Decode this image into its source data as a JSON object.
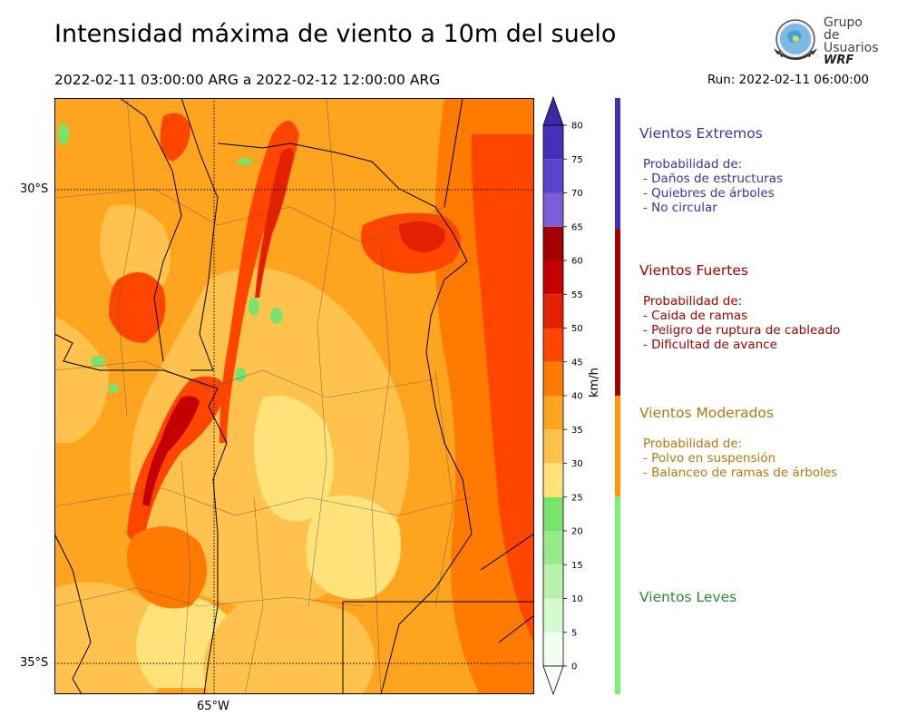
{
  "title": "Intensidad máxima de viento a 10m del suelo",
  "period": "2022-02-11 03:00:00 ARG  a  2022-02-12 12:00:00 ARG",
  "run": "Run: 2022-02-11 06:00:00",
  "logo": {
    "line1": "Grupo de",
    "line2": "Usuarios",
    "line3": "WRF"
  },
  "map": {
    "lat_labels": [
      "30°S",
      "35°S"
    ],
    "lon_labels": [
      "65°W"
    ]
  },
  "colorbar": {
    "unit": "km/h",
    "ticks": [
      "0",
      "5",
      "10",
      "15",
      "20",
      "25",
      "30",
      "35",
      "40",
      "45",
      "50",
      "55",
      "60",
      "65",
      "70",
      "75",
      "80"
    ],
    "colors": [
      "#f0fff0",
      "#d6f9d2",
      "#b7f2ac",
      "#97ea8a",
      "#78e36d",
      "#ffe27a",
      "#ffc24c",
      "#ffa41f",
      "#ff7a00",
      "#ff4500",
      "#e32000",
      "#c40000",
      "#a30000",
      "#7a5fd9",
      "#5a44cc",
      "#4630bb"
    ],
    "over_color": "#3a2aa8"
  },
  "categories": [
    {
      "title": "Vientos Extremos",
      "color": "#4132a6",
      "prob_label": "Probabilidad de:",
      "items": [
        "- Daños de estructuras",
        "- Quiebres de árboles",
        "- No circular"
      ]
    },
    {
      "title": "Vientos Fuertes",
      "color": "#a50000",
      "prob_label": "Probabilidad de:",
      "items": [
        "- Caida de ramas",
        "- Peligro de ruptura de cableado",
        "- Dificultad de avance"
      ]
    },
    {
      "title": "Vientos Moderados",
      "color": "#b07a10",
      "prob_label": "Probabilidad de:",
      "items": [
        "- Polvo en suspensión",
        "- Balanceo de ramas de árboles"
      ]
    },
    {
      "title": "Vientos Leves",
      "color": "#2f8a2f",
      "prob_label": "",
      "items": []
    }
  ],
  "category_bar_colors": [
    "#3c2fb8",
    "#a30000",
    "#ff9800",
    "#7af27a"
  ]
}
